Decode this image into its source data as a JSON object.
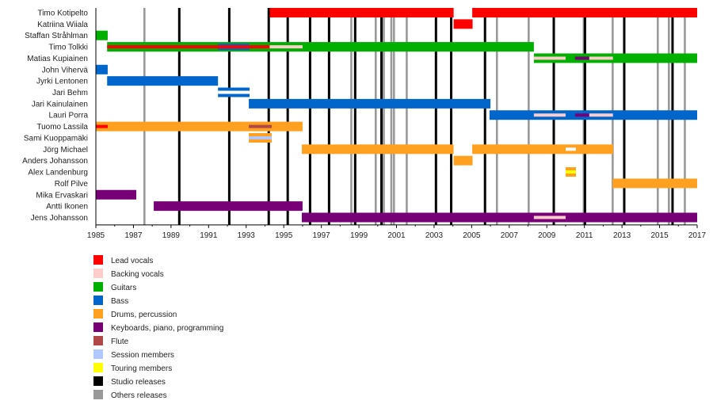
{
  "chart_data": {
    "type": "timeline",
    "title": "",
    "xlabel": "",
    "ylabel": "",
    "xlim": [
      1985,
      2017
    ],
    "x_tick_labels": [
      "1985",
      "1987",
      "1989",
      "1991",
      "1993",
      "1995",
      "1997",
      "1999",
      "2001",
      "2003",
      "2005",
      "2007",
      "2009",
      "2011",
      "2013",
      "2015",
      "2017"
    ],
    "roles": {
      "lead_vocals": {
        "label": "Lead vocals",
        "color": "#FF0000"
      },
      "backing_vocals": {
        "label": "Backing vocals",
        "color": "#FFCCCC"
      },
      "guitars": {
        "label": "Guitars",
        "color": "#00B000"
      },
      "bass": {
        "label": "Bass",
        "color": "#0066CC"
      },
      "drums": {
        "label": "Drums, percussion",
        "color": "#FFA020"
      },
      "keyboards": {
        "label": "Keyboards, piano, programming",
        "color": "#770077"
      },
      "flute": {
        "label": "Flute",
        "color": "#B04848"
      },
      "session": {
        "label": "Session members",
        "color": "#B0C8FF"
      },
      "touring": {
        "label": "Touring members",
        "color": "#FFFF00"
      },
      "gap": {
        "label": "",
        "color": "#FFFFFF"
      },
      "studio": {
        "label": "Studio releases",
        "color": "#000000"
      },
      "others": {
        "label": "Others releases",
        "color": "#999999"
      }
    },
    "legend_order": [
      "lead_vocals",
      "backing_vocals",
      "guitars",
      "bass",
      "drums",
      "keyboards",
      "flute",
      "session",
      "touring",
      "studio",
      "others"
    ],
    "legend_position": "bottom-left",
    "studio_releases": [
      1989.44,
      1992.1,
      1994.2,
      1995.21,
      1996.4,
      1997.41,
      1998.8,
      2000.2,
      2003.1,
      2003.91,
      2005.71,
      2009.37,
      2011.03,
      2013.12,
      2015.69
    ],
    "other_releases": [
      1987.58,
      1998.59,
      1999.89,
      2000.32,
      2000.72,
      2000.86,
      2001.54,
      2006.34,
      2008.03,
      2010.96,
      2012.5,
      2014.9,
      2015.49,
      2016.34
    ],
    "members": [
      {
        "name": "Timo Kotipelto",
        "bars": [
          {
            "role": "lead_vocals",
            "start": 1994.25,
            "end": 2004.04,
            "layer": "main"
          },
          {
            "role": "lead_vocals",
            "start": 2005.03,
            "end": 2017,
            "layer": "main"
          }
        ]
      },
      {
        "name": "Katriina Wiiala",
        "bars": [
          {
            "role": "lead_vocals",
            "start": 2004.04,
            "end": 2005.05,
            "layer": "main"
          }
        ]
      },
      {
        "name": "Staffan Stråhlman",
        "bars": [
          {
            "role": "guitars",
            "start": 1985,
            "end": 1985.63,
            "layer": "main"
          }
        ]
      },
      {
        "name": "Timo Tolkki",
        "bars": [
          {
            "role": "guitars",
            "start": 1985.6,
            "end": 2008.31,
            "layer": "main"
          },
          {
            "role": "bass",
            "start": 1991.5,
            "end": 1993.18,
            "layer": "wide"
          },
          {
            "role": "lead_vocals",
            "start": 1985.6,
            "end": 1994.25,
            "layer": "inner"
          },
          {
            "role": "backing_vocals",
            "start": 1994.25,
            "end": 1996.0,
            "layer": "inner"
          }
        ]
      },
      {
        "name": "Matias Kupiainen",
        "bars": [
          {
            "role": "guitars",
            "start": 2008.31,
            "end": 2017,
            "layer": "main"
          },
          {
            "role": "backing_vocals",
            "start": 2008.31,
            "end": 2010.0,
            "layer": "inner"
          },
          {
            "role": "keyboards",
            "start": 2010.5,
            "end": 2011.26,
            "layer": "inner"
          },
          {
            "role": "backing_vocals",
            "start": 2011.26,
            "end": 2012.52,
            "layer": "inner"
          }
        ]
      },
      {
        "name": "John Vihervä",
        "bars": [
          {
            "role": "bass",
            "start": 1985,
            "end": 1985.63,
            "layer": "main"
          }
        ]
      },
      {
        "name": "Jyrki Lentonen",
        "bars": [
          {
            "role": "bass",
            "start": 1985.6,
            "end": 1991.5,
            "layer": "main"
          }
        ]
      },
      {
        "name": "Jari Behm",
        "bars": [
          {
            "role": "bass",
            "start": 1991.5,
            "end": 1993.18,
            "layer": "main"
          },
          {
            "role": "gap",
            "start": 1991.5,
            "end": 1993.18,
            "layer": "inner"
          }
        ]
      },
      {
        "name": "Jari Kainulainen",
        "bars": [
          {
            "role": "bass",
            "start": 1993.14,
            "end": 2006.0,
            "layer": "main"
          }
        ]
      },
      {
        "name": "Lauri Porra",
        "bars": [
          {
            "role": "bass",
            "start": 2005.95,
            "end": 2017,
            "layer": "main"
          },
          {
            "role": "backing_vocals",
            "start": 2008.31,
            "end": 2010.0,
            "layer": "inner"
          },
          {
            "role": "keyboards",
            "start": 2010.5,
            "end": 2011.26,
            "layer": "inner"
          },
          {
            "role": "backing_vocals",
            "start": 2011.26,
            "end": 2012.52,
            "layer": "inner"
          }
        ]
      },
      {
        "name": "Tuomo Lassila",
        "bars": [
          {
            "role": "drums",
            "start": 1985,
            "end": 1996.0,
            "layer": "main"
          },
          {
            "role": "lead_vocals",
            "start": 1985,
            "end": 1985.63,
            "layer": "inner"
          },
          {
            "role": "flute",
            "start": 1993.14,
            "end": 1994.36,
            "layer": "inner"
          }
        ]
      },
      {
        "name": "Sami Kuoppamäki",
        "bars": [
          {
            "role": "drums",
            "start": 1993.14,
            "end": 1994.36,
            "layer": "main"
          },
          {
            "role": "session",
            "start": 1993.14,
            "end": 1994.36,
            "layer": "inner"
          }
        ]
      },
      {
        "name": "Jörg Michael",
        "bars": [
          {
            "role": "drums",
            "start": 1995.96,
            "end": 2004.04,
            "layer": "main"
          },
          {
            "role": "drums",
            "start": 2005.03,
            "end": 2012.53,
            "layer": "main"
          },
          {
            "role": "gap",
            "start": 2010.0,
            "end": 2010.55,
            "layer": "inner"
          }
        ]
      },
      {
        "name": "Anders Johansson",
        "bars": [
          {
            "role": "drums",
            "start": 2004.04,
            "end": 2005.05,
            "layer": "main"
          }
        ]
      },
      {
        "name": "Alex Landenburg",
        "bars": [
          {
            "role": "drums",
            "start": 2010.0,
            "end": 2010.55,
            "layer": "main"
          },
          {
            "role": "touring",
            "start": 2010.0,
            "end": 2010.55,
            "layer": "inner"
          }
        ]
      },
      {
        "name": "Rolf Pilve",
        "bars": [
          {
            "role": "drums",
            "start": 2012.5,
            "end": 2017,
            "layer": "main"
          }
        ]
      },
      {
        "name": "Mika Ervaskari",
        "bars": [
          {
            "role": "keyboards",
            "start": 1985,
            "end": 1987.15,
            "layer": "main"
          }
        ]
      },
      {
        "name": "Antti Ikonen",
        "bars": [
          {
            "role": "keyboards",
            "start": 1988.08,
            "end": 1996.0,
            "layer": "main"
          }
        ]
      },
      {
        "name": "Jens Johansson",
        "bars": [
          {
            "role": "keyboards",
            "start": 1995.96,
            "end": 2017,
            "layer": "main"
          },
          {
            "role": "backing_vocals",
            "start": 2008.31,
            "end": 2010.0,
            "layer": "inner"
          }
        ]
      }
    ]
  }
}
